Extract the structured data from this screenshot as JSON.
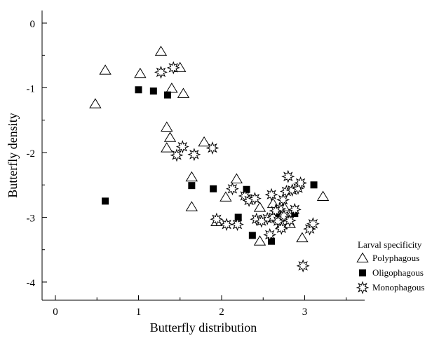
{
  "chart_data": {
    "type": "scatter",
    "title": "",
    "xlabel": "Butterfly distribution",
    "ylabel": "Butterfly density",
    "xlim": [
      -0.2,
      3.7
    ],
    "ylim": [
      -4.2,
      0.2
    ],
    "x_ticks": [
      0,
      1,
      2,
      3
    ],
    "y_ticks": [
      0,
      -1,
      -2,
      -3,
      -4
    ],
    "x_tick_labels": [
      "0",
      "1",
      "2",
      "3"
    ],
    "y_tick_labels": [
      "0",
      "-1",
      "-2",
      "-3",
      "-4"
    ],
    "grid": false,
    "legend": {
      "title": "Larval specificity",
      "position": "bottom-right"
    },
    "series": [
      {
        "name": "Polyphagous",
        "marker": "open-triangle",
        "points": [
          [
            0.48,
            -1.25
          ],
          [
            0.6,
            -0.73
          ],
          [
            1.02,
            -0.78
          ],
          [
            1.27,
            -0.44
          ],
          [
            1.5,
            -0.69
          ],
          [
            1.4,
            -1.01
          ],
          [
            1.54,
            -1.09
          ],
          [
            1.34,
            -1.61
          ],
          [
            1.38,
            -1.77
          ],
          [
            1.34,
            -1.93
          ],
          [
            1.79,
            -1.84
          ],
          [
            1.64,
            -2.38
          ],
          [
            1.64,
            -2.84
          ],
          [
            2.18,
            -2.41
          ],
          [
            2.05,
            -2.69
          ],
          [
            2.46,
            -2.85
          ],
          [
            2.62,
            -2.79
          ],
          [
            2.75,
            -2.84
          ],
          [
            2.85,
            -2.93
          ],
          [
            2.82,
            -3.1
          ],
          [
            2.46,
            -3.37
          ],
          [
            2.97,
            -3.32
          ],
          [
            3.22,
            -2.68
          ],
          [
            1.94,
            -3.07
          ],
          [
            2.72,
            -3.12
          ]
        ]
      },
      {
        "name": "Oligophagous",
        "marker": "filled-square",
        "points": [
          [
            1.0,
            -1.03
          ],
          [
            1.18,
            -1.05
          ],
          [
            1.35,
            -1.11
          ],
          [
            0.6,
            -2.75
          ],
          [
            1.64,
            -2.51
          ],
          [
            1.9,
            -2.56
          ],
          [
            2.3,
            -2.57
          ],
          [
            2.2,
            -3.0
          ],
          [
            2.37,
            -3.28
          ],
          [
            2.6,
            -3.37
          ],
          [
            2.65,
            -2.95
          ],
          [
            2.88,
            -2.94
          ],
          [
            3.11,
            -2.5
          ]
        ]
      },
      {
        "name": "Monophagous",
        "marker": "star",
        "points": [
          [
            1.27,
            -0.76
          ],
          [
            1.42,
            -0.69
          ],
          [
            1.46,
            -2.04
          ],
          [
            1.53,
            -1.91
          ],
          [
            1.67,
            -2.03
          ],
          [
            1.89,
            -1.93
          ],
          [
            1.94,
            -3.03
          ],
          [
            2.06,
            -3.11
          ],
          [
            2.13,
            -2.56
          ],
          [
            2.19,
            -3.11
          ],
          [
            2.28,
            -2.67
          ],
          [
            2.33,
            -2.74
          ],
          [
            2.4,
            -2.71
          ],
          [
            2.42,
            -3.03
          ],
          [
            2.55,
            -3.02
          ],
          [
            2.6,
            -2.65
          ],
          [
            2.62,
            -3.0
          ],
          [
            2.68,
            -3.06
          ],
          [
            2.7,
            -2.87
          ],
          [
            2.72,
            -3.17
          ],
          [
            2.75,
            -2.98
          ],
          [
            2.78,
            -2.6
          ],
          [
            2.8,
            -2.37
          ],
          [
            2.82,
            -3.05
          ],
          [
            2.85,
            -2.58
          ],
          [
            2.88,
            -2.88
          ],
          [
            2.92,
            -2.55
          ],
          [
            2.95,
            -2.47
          ],
          [
            2.98,
            -3.75
          ],
          [
            3.06,
            -3.18
          ],
          [
            3.1,
            -3.1
          ],
          [
            2.58,
            -3.27
          ],
          [
            2.65,
            -2.9
          ],
          [
            2.48,
            -3.06
          ],
          [
            2.74,
            -2.73
          ]
        ]
      }
    ]
  }
}
